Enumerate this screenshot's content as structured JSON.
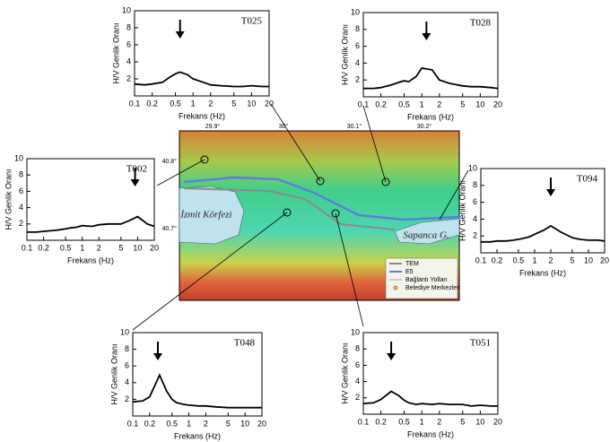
{
  "chart_data": [
    {
      "type": "line",
      "title": "T025",
      "ylabel": "H/V Genlik Oranı",
      "xlabel": "Frekans (Hz)",
      "log_x": true,
      "xlim": [
        0.1,
        20
      ],
      "xticks": [
        0.1,
        0.2,
        0.5,
        1,
        2,
        5,
        10,
        20
      ],
      "ylim": [
        0,
        10
      ],
      "yticks": [
        2,
        4,
        6,
        8,
        10
      ],
      "peak_frequency": 0.6,
      "x": [
        0.1,
        0.15,
        0.2,
        0.3,
        0.4,
        0.5,
        0.6,
        0.8,
        1,
        1.5,
        2,
        3,
        5,
        7,
        10,
        15,
        20
      ],
      "series": [
        {
          "color": "#000000",
          "values": [
            1.4,
            1.3,
            1.4,
            1.6,
            2.2,
            2.6,
            2.8,
            2.5,
            2.0,
            1.6,
            1.3,
            1.2,
            1.1,
            1.1,
            1.2,
            1.1,
            1.1
          ]
        }
      ]
    },
    {
      "type": "line",
      "title": "T028",
      "ylabel": "H/V Genlik Oranı",
      "xlabel": "Frekans (Hz)",
      "log_x": true,
      "xlim": [
        0.1,
        20
      ],
      "xticks": [
        0.1,
        0.2,
        0.5,
        1,
        2,
        5,
        10,
        20
      ],
      "ylim": [
        0,
        10
      ],
      "yticks": [
        2,
        4,
        6,
        8,
        10
      ],
      "peak_frequency": 1.2,
      "x": [
        0.1,
        0.15,
        0.2,
        0.3,
        0.4,
        0.5,
        0.6,
        0.8,
        1,
        1.5,
        2,
        3,
        5,
        7,
        10,
        15,
        20
      ],
      "series": [
        {
          "color": "#000000",
          "values": [
            1.0,
            1.0,
            1.1,
            1.4,
            1.7,
            1.9,
            1.8,
            2.4,
            3.4,
            3.2,
            2.0,
            1.6,
            1.3,
            1.2,
            1.2,
            1.1,
            1.0
          ]
        }
      ]
    },
    {
      "type": "line",
      "title": "T002",
      "ylabel": "H/V Genlik Oranı",
      "xlabel": "Frekans (Hz)",
      "log_x": true,
      "xlim": [
        0.1,
        20
      ],
      "xticks": [
        0.1,
        0.2,
        0.5,
        1,
        2,
        5,
        10,
        20
      ],
      "ylim": [
        0,
        10
      ],
      "yticks": [
        2,
        4,
        6,
        8,
        10
      ],
      "peak_frequency": 9,
      "x": [
        0.1,
        0.15,
        0.2,
        0.3,
        0.4,
        0.5,
        0.6,
        0.8,
        1,
        1.5,
        2,
        3,
        5,
        7,
        10,
        15,
        20
      ],
      "series": [
        {
          "color": "#000000",
          "values": [
            1.0,
            1.0,
            1.1,
            1.2,
            1.3,
            1.4,
            1.5,
            1.6,
            1.8,
            1.7,
            1.9,
            2.0,
            2.0,
            2.4,
            2.9,
            2.0,
            1.7
          ]
        }
      ]
    },
    {
      "type": "line",
      "title": "T094",
      "ylabel": "H/V Genlik Oranı",
      "xlabel": "Frekans (Hz)",
      "log_x": true,
      "xlim": [
        0.1,
        20
      ],
      "xticks": [
        0.1,
        0.2,
        0.5,
        1,
        2,
        5,
        10,
        20
      ],
      "ylim": [
        0,
        10
      ],
      "yticks": [
        2,
        4,
        6,
        8,
        10
      ],
      "peak_frequency": 2,
      "x": [
        0.1,
        0.15,
        0.2,
        0.3,
        0.4,
        0.5,
        0.6,
        0.8,
        1,
        1.5,
        2,
        3,
        5,
        7,
        10,
        15,
        20
      ],
      "series": [
        {
          "color": "#000000",
          "values": [
            1.3,
            1.3,
            1.4,
            1.4,
            1.5,
            1.6,
            1.7,
            1.9,
            2.2,
            2.7,
            3.2,
            2.5,
            1.8,
            1.6,
            1.5,
            1.5,
            1.4
          ]
        }
      ]
    },
    {
      "type": "line",
      "title": "T048",
      "ylabel": "H/V Genlik Oranı",
      "xlabel": "Frekans (Hz)",
      "log_x": true,
      "xlim": [
        0.1,
        20
      ],
      "xticks": [
        0.1,
        0.2,
        0.5,
        1,
        2,
        5,
        10,
        20
      ],
      "ylim": [
        0,
        10
      ],
      "yticks": [
        2,
        4,
        6,
        8,
        10
      ],
      "peak_frequency": 0.28,
      "x": [
        0.1,
        0.15,
        0.2,
        0.3,
        0.4,
        0.5,
        0.6,
        0.8,
        1,
        1.5,
        2,
        3,
        5,
        7,
        10,
        15,
        20
      ],
      "series": [
        {
          "color": "#000000",
          "values": [
            1.7,
            1.8,
            2.3,
            4.9,
            3.0,
            2.0,
            1.6,
            1.4,
            1.3,
            1.2,
            1.2,
            1.1,
            1.0,
            1.0,
            1.0,
            1.0,
            1.0
          ]
        }
      ]
    },
    {
      "type": "line",
      "title": "T051",
      "ylabel": "H/V Genlik Oranı",
      "xlabel": "Frekans (Hz)",
      "log_x": true,
      "xlim": [
        0.1,
        20
      ],
      "xticks": [
        0.1,
        0.2,
        0.5,
        1,
        2,
        5,
        10,
        20
      ],
      "ylim": [
        0,
        10
      ],
      "yticks": [
        2,
        4,
        6,
        8,
        10
      ],
      "peak_frequency": 0.3,
      "x": [
        0.1,
        0.15,
        0.2,
        0.3,
        0.4,
        0.5,
        0.6,
        0.8,
        1,
        1.5,
        2,
        3,
        5,
        7,
        10,
        15,
        20
      ],
      "series": [
        {
          "color": "#000000",
          "values": [
            1.3,
            1.4,
            1.8,
            2.8,
            2.3,
            1.7,
            1.4,
            1.2,
            1.3,
            1.2,
            1.3,
            1.2,
            1.2,
            1.0,
            1.1,
            1.0,
            1.0
          ]
        }
      ]
    }
  ],
  "map": {
    "longitudes": [
      "29.9°",
      "30°",
      "30.1°",
      "30.2°"
    ],
    "latitudes": [
      "40.8°",
      "40.7°"
    ],
    "gulf": "İzmit Körfezi",
    "lake": "Sapanca G.",
    "legend": [
      "TEM",
      "E5",
      "Bağlantı Yolları",
      "Belediye Merkezleri"
    ]
  }
}
